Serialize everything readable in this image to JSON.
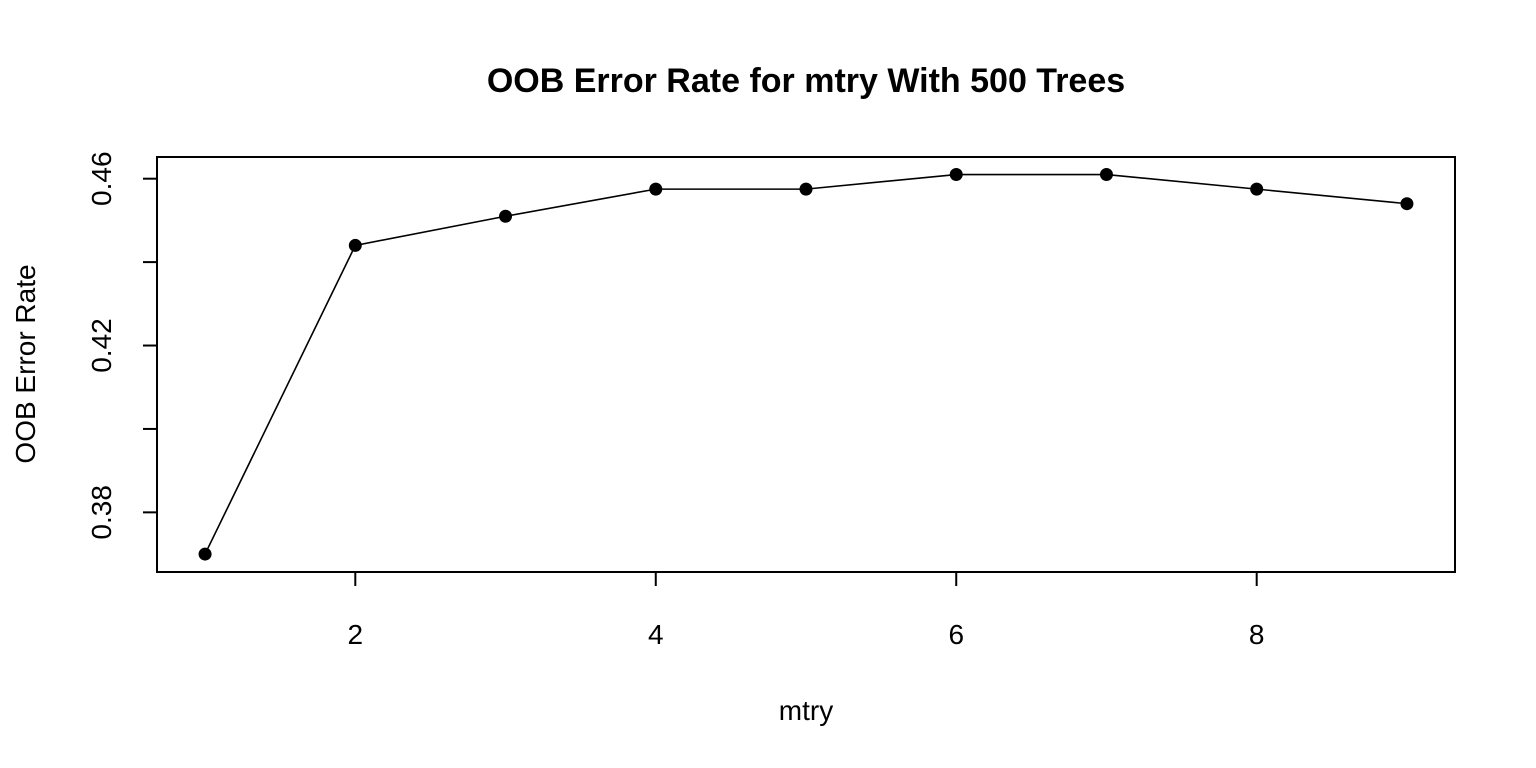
{
  "chart_data": {
    "type": "line",
    "title": "OOB Error Rate for mtry With 500 Trees",
    "xlabel": "mtry",
    "ylabel": "OOB Error Rate",
    "x": [
      1,
      2,
      3,
      4,
      5,
      6,
      7,
      8,
      9
    ],
    "series": [
      {
        "values": [
          0.37,
          0.444,
          0.451,
          0.4575,
          0.4575,
          0.461,
          0.461,
          0.4575,
          0.454
        ]
      }
    ],
    "xlim": [
      0.68,
      9.32
    ],
    "ylim": [
      0.3657,
      0.4652
    ],
    "x_ticks": [
      2,
      4,
      6,
      8
    ],
    "x_tick_labels": [
      "2",
      "4",
      "6",
      "8"
    ],
    "y_ticks": [
      0.38,
      0.4,
      0.42,
      0.44,
      0.46
    ],
    "y_tick_labels": [
      "0.38",
      "",
      "0.42",
      "",
      "0.46"
    ],
    "grid": false,
    "markers": "filled-circle",
    "line_color": "#000000"
  }
}
